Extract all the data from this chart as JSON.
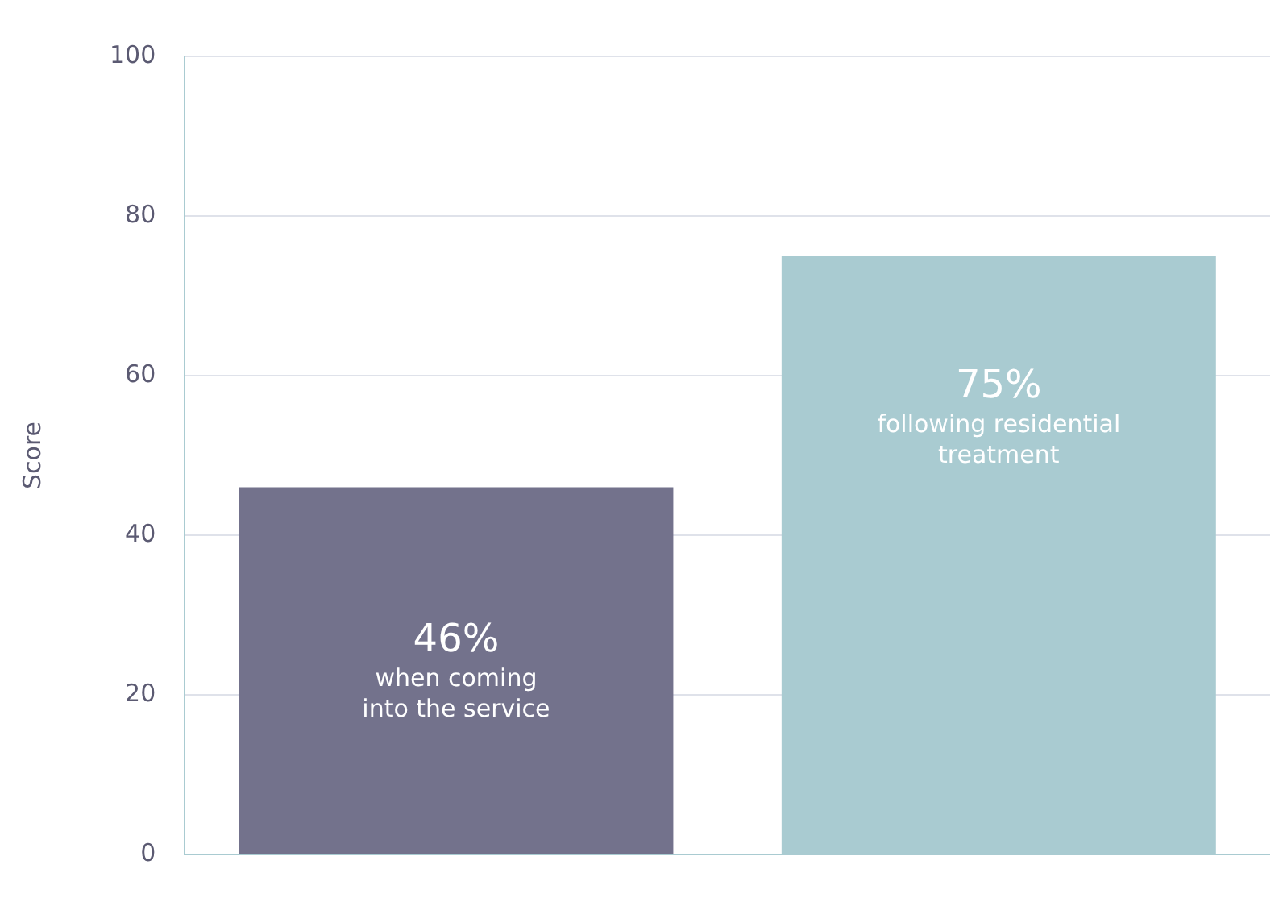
{
  "chart_data": {
    "type": "bar",
    "ylabel": "Score",
    "categories": [
      null,
      null
    ],
    "values": [
      46,
      75
    ],
    "colors": [
      "#73728c",
      "#a9cbd1"
    ],
    "value_labels": [
      "46%",
      "75%"
    ],
    "annotations": [
      "when coming into the service",
      "following residential treatment"
    ],
    "ylim": [
      0,
      100
    ],
    "yticks": [
      0,
      20,
      40,
      60,
      80,
      100
    ],
    "grid": "y",
    "legend": false
  }
}
